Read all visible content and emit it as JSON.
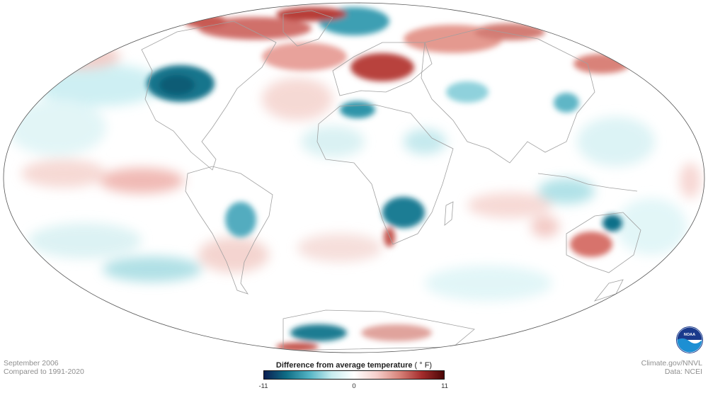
{
  "info_left": {
    "date": "September 2006",
    "baseline": "Compared to 1991-2020"
  },
  "info_right": {
    "credit": "Climate.gov/NNVL",
    "data_source": "Data: NCEI"
  },
  "legend": {
    "title": "Difference from average temperature",
    "unit": "( ° F)",
    "min_label": "-11",
    "mid_label": "0",
    "max_label": "11",
    "min": -11,
    "max": 11,
    "colors": [
      "#0b1f52",
      "#0f6e86",
      "#52b3c4",
      "#c7ecef",
      "#ffffff",
      "#f5d0cc",
      "#d9857c",
      "#a52d2d",
      "#4a0606"
    ]
  },
  "logo": {
    "text": "NOAA",
    "colors": [
      "#1a3a8c",
      "#1d8fd3"
    ]
  },
  "map": {
    "projection": "mollweide",
    "ocean_color": "#ffffff",
    "border_color": "#9a9a9a"
  }
}
